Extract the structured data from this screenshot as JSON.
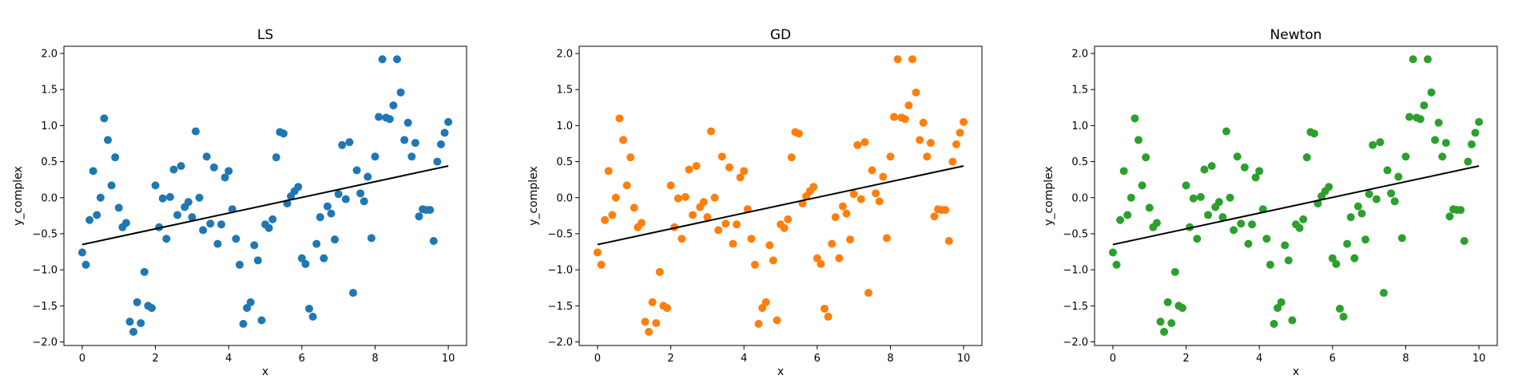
{
  "chart_data": [
    {
      "type": "scatter",
      "title": "LS",
      "xlabel": "x",
      "ylabel": "y_complex",
      "xlim": [
        -0.5,
        10.5
      ],
      "ylim": [
        -2.05,
        2.1
      ],
      "xticks": [
        "0",
        "2",
        "4",
        "6",
        "8",
        "10"
      ],
      "yticks": [
        "-2.0",
        "-1.5",
        "-1.0",
        "-0.5",
        "0.0",
        "0.5",
        "1.0",
        "1.5",
        "2.0"
      ],
      "grid": false,
      "color": "#1f77b4",
      "fit_line": {
        "x": [
          0,
          10
        ],
        "y": [
          -0.65,
          0.44
        ],
        "color": "#000000"
      },
      "x": [
        0.0,
        0.1,
        0.2,
        0.3,
        0.4,
        0.5,
        0.6,
        0.7,
        0.8,
        0.9,
        1.0,
        1.1,
        1.2,
        1.3,
        1.4,
        1.5,
        1.6,
        1.7,
        1.8,
        1.9,
        2.0,
        2.1,
        2.2,
        2.3,
        2.4,
        2.5,
        2.6,
        2.7,
        2.8,
        2.9,
        3.0,
        3.1,
        3.2,
        3.3,
        3.4,
        3.5,
        3.6,
        3.7,
        3.8,
        3.9,
        4.0,
        4.1,
        4.2,
        4.3,
        4.4,
        4.5,
        4.6,
        4.7,
        4.8,
        4.9,
        5.0,
        5.1,
        5.2,
        5.3,
        5.4,
        5.5,
        5.6,
        5.7,
        5.8,
        5.9,
        6.0,
        6.1,
        6.2,
        6.3,
        6.4,
        6.5,
        6.6,
        6.7,
        6.8,
        6.9,
        7.0,
        7.1,
        7.2,
        7.3,
        7.4,
        7.5,
        7.6,
        7.7,
        7.8,
        7.9,
        8.0,
        8.1,
        8.2,
        8.3,
        8.4,
        8.5,
        8.6,
        8.7,
        8.8,
        8.9,
        9.0,
        9.1,
        9.2,
        9.3,
        9.4,
        9.5,
        9.6,
        9.7,
        9.8,
        9.9,
        10.0
      ],
      "y": [
        -0.76,
        -0.93,
        -0.31,
        0.37,
        -0.24,
        0.0,
        1.1,
        0.8,
        0.17,
        0.56,
        -0.14,
        -0.41,
        -0.35,
        -1.72,
        -1.86,
        -1.45,
        -1.74,
        -1.03,
        -1.5,
        -1.53,
        0.17,
        -0.41,
        -0.01,
        -0.57,
        0.01,
        0.39,
        -0.24,
        0.44,
        -0.13,
        -0.06,
        -0.27,
        0.92,
        0.0,
        -0.45,
        0.57,
        -0.36,
        0.42,
        -0.64,
        -0.37,
        0.28,
        0.37,
        -0.16,
        -0.57,
        -0.93,
        -1.75,
        -1.53,
        -1.45,
        -0.66,
        -0.87,
        -1.7,
        -0.37,
        -0.42,
        -0.3,
        0.56,
        0.91,
        0.89,
        -0.08,
        0.02,
        0.09,
        0.15,
        -0.84,
        -0.92,
        -1.54,
        -1.65,
        -0.64,
        -0.27,
        -0.84,
        -0.12,
        -0.22,
        -0.58,
        0.05,
        0.73,
        -0.02,
        0.77,
        -1.32,
        0.38,
        0.06,
        -0.05,
        0.29,
        -0.56,
        0.57,
        1.12,
        1.92,
        1.11,
        1.09,
        1.28,
        1.92,
        1.46,
        0.8,
        1.04,
        0.57,
        0.76,
        -0.26,
        -0.16,
        -0.17,
        -0.17,
        -0.6,
        0.5,
        0.74,
        0.9,
        1.05
      ]
    },
    {
      "type": "scatter",
      "title": "GD",
      "xlabel": "x",
      "ylabel": "y_complex",
      "xlim": [
        -0.5,
        10.5
      ],
      "ylim": [
        -2.05,
        2.1
      ],
      "xticks": [
        "0",
        "2",
        "4",
        "6",
        "8",
        "10"
      ],
      "yticks": [
        "-2.0",
        "-1.5",
        "-1.0",
        "-0.5",
        "0.0",
        "0.5",
        "1.0",
        "1.5",
        "2.0"
      ],
      "grid": false,
      "color": "#ff7f0e",
      "fit_line": {
        "x": [
          0,
          10
        ],
        "y": [
          -0.65,
          0.44
        ],
        "color": "#000000"
      },
      "x": [
        0.0,
        0.1,
        0.2,
        0.3,
        0.4,
        0.5,
        0.6,
        0.7,
        0.8,
        0.9,
        1.0,
        1.1,
        1.2,
        1.3,
        1.4,
        1.5,
        1.6,
        1.7,
        1.8,
        1.9,
        2.0,
        2.1,
        2.2,
        2.3,
        2.4,
        2.5,
        2.6,
        2.7,
        2.8,
        2.9,
        3.0,
        3.1,
        3.2,
        3.3,
        3.4,
        3.5,
        3.6,
        3.7,
        3.8,
        3.9,
        4.0,
        4.1,
        4.2,
        4.3,
        4.4,
        4.5,
        4.6,
        4.7,
        4.8,
        4.9,
        5.0,
        5.1,
        5.2,
        5.3,
        5.4,
        5.5,
        5.6,
        5.7,
        5.8,
        5.9,
        6.0,
        6.1,
        6.2,
        6.3,
        6.4,
        6.5,
        6.6,
        6.7,
        6.8,
        6.9,
        7.0,
        7.1,
        7.2,
        7.3,
        7.4,
        7.5,
        7.6,
        7.7,
        7.8,
        7.9,
        8.0,
        8.1,
        8.2,
        8.3,
        8.4,
        8.5,
        8.6,
        8.7,
        8.8,
        8.9,
        9.0,
        9.1,
        9.2,
        9.3,
        9.4,
        9.5,
        9.6,
        9.7,
        9.8,
        9.9,
        10.0
      ],
      "y": [
        -0.76,
        -0.93,
        -0.31,
        0.37,
        -0.24,
        0.0,
        1.1,
        0.8,
        0.17,
        0.56,
        -0.14,
        -0.41,
        -0.35,
        -1.72,
        -1.86,
        -1.45,
        -1.74,
        -1.03,
        -1.5,
        -1.53,
        0.17,
        -0.41,
        -0.01,
        -0.57,
        0.01,
        0.39,
        -0.24,
        0.44,
        -0.13,
        -0.06,
        -0.27,
        0.92,
        0.0,
        -0.45,
        0.57,
        -0.36,
        0.42,
        -0.64,
        -0.37,
        0.28,
        0.37,
        -0.16,
        -0.57,
        -0.93,
        -1.75,
        -1.53,
        -1.45,
        -0.66,
        -0.87,
        -1.7,
        -0.37,
        -0.42,
        -0.3,
        0.56,
        0.91,
        0.89,
        -0.08,
        0.02,
        0.09,
        0.15,
        -0.84,
        -0.92,
        -1.54,
        -1.65,
        -0.64,
        -0.27,
        -0.84,
        -0.12,
        -0.22,
        -0.58,
        0.05,
        0.73,
        -0.02,
        0.77,
        -1.32,
        0.38,
        0.06,
        -0.05,
        0.29,
        -0.56,
        0.57,
        1.12,
        1.92,
        1.11,
        1.09,
        1.28,
        1.92,
        1.46,
        0.8,
        1.04,
        0.57,
        0.76,
        -0.26,
        -0.16,
        -0.17,
        -0.17,
        -0.6,
        0.5,
        0.74,
        0.9,
        1.05
      ]
    },
    {
      "type": "scatter",
      "title": "Newton",
      "xlabel": "x",
      "ylabel": "y_complex",
      "xlim": [
        -0.5,
        10.5
      ],
      "ylim": [
        -2.05,
        2.1
      ],
      "xticks": [
        "0",
        "2",
        "4",
        "6",
        "8",
        "10"
      ],
      "yticks": [
        "-2.0",
        "-1.5",
        "-1.0",
        "-0.5",
        "0.0",
        "0.5",
        "1.0",
        "1.5",
        "2.0"
      ],
      "grid": false,
      "color": "#2ca02c",
      "fit_line": {
        "x": [
          0,
          10
        ],
        "y": [
          -0.65,
          0.44
        ],
        "color": "#000000"
      },
      "x": [
        0.0,
        0.1,
        0.2,
        0.3,
        0.4,
        0.5,
        0.6,
        0.7,
        0.8,
        0.9,
        1.0,
        1.1,
        1.2,
        1.3,
        1.4,
        1.5,
        1.6,
        1.7,
        1.8,
        1.9,
        2.0,
        2.1,
        2.2,
        2.3,
        2.4,
        2.5,
        2.6,
        2.7,
        2.8,
        2.9,
        3.0,
        3.1,
        3.2,
        3.3,
        3.4,
        3.5,
        3.6,
        3.7,
        3.8,
        3.9,
        4.0,
        4.1,
        4.2,
        4.3,
        4.4,
        4.5,
        4.6,
        4.7,
        4.8,
        4.9,
        5.0,
        5.1,
        5.2,
        5.3,
        5.4,
        5.5,
        5.6,
        5.7,
        5.8,
        5.9,
        6.0,
        6.1,
        6.2,
        6.3,
        6.4,
        6.5,
        6.6,
        6.7,
        6.8,
        6.9,
        7.0,
        7.1,
        7.2,
        7.3,
        7.4,
        7.5,
        7.6,
        7.7,
        7.8,
        7.9,
        8.0,
        8.1,
        8.2,
        8.3,
        8.4,
        8.5,
        8.6,
        8.7,
        8.8,
        8.9,
        9.0,
        9.1,
        9.2,
        9.3,
        9.4,
        9.5,
        9.6,
        9.7,
        9.8,
        9.9,
        10.0
      ],
      "y": [
        -0.76,
        -0.93,
        -0.31,
        0.37,
        -0.24,
        0.0,
        1.1,
        0.8,
        0.17,
        0.56,
        -0.14,
        -0.41,
        -0.35,
        -1.72,
        -1.86,
        -1.45,
        -1.74,
        -1.03,
        -1.5,
        -1.53,
        0.17,
        -0.41,
        -0.01,
        -0.57,
        0.01,
        0.39,
        -0.24,
        0.44,
        -0.13,
        -0.06,
        -0.27,
        0.92,
        0.0,
        -0.45,
        0.57,
        -0.36,
        0.42,
        -0.64,
        -0.37,
        0.28,
        0.37,
        -0.16,
        -0.57,
        -0.93,
        -1.75,
        -1.53,
        -1.45,
        -0.66,
        -0.87,
        -1.7,
        -0.37,
        -0.42,
        -0.3,
        0.56,
        0.91,
        0.89,
        -0.08,
        0.02,
        0.09,
        0.15,
        -0.84,
        -0.92,
        -1.54,
        -1.65,
        -0.64,
        -0.27,
        -0.84,
        -0.12,
        -0.22,
        -0.58,
        0.05,
        0.73,
        -0.02,
        0.77,
        -1.32,
        0.38,
        0.06,
        -0.05,
        0.29,
        -0.56,
        0.57,
        1.12,
        1.92,
        1.11,
        1.09,
        1.28,
        1.92,
        1.46,
        0.8,
        1.04,
        0.57,
        0.76,
        -0.26,
        -0.16,
        -0.17,
        -0.17,
        -0.6,
        0.5,
        0.74,
        0.9,
        1.05
      ]
    }
  ]
}
